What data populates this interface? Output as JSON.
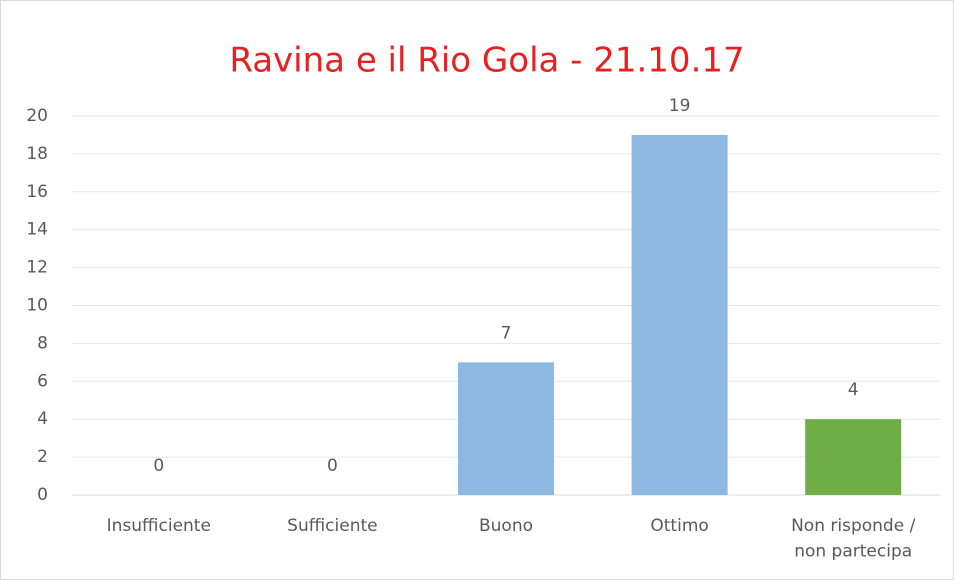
{
  "chart_data": {
    "type": "bar",
    "title": "Ravina e il Rio Gola - 21.10.17",
    "categories": [
      "Insufficiente",
      "Sufficiente",
      "Buono",
      "Ottimo",
      "Non risponde / non partecipa"
    ],
    "values": [
      0,
      0,
      7,
      19,
      4
    ],
    "colors": [
      "#8db8e2",
      "#8db8e2",
      "#8db8e2",
      "#8db8e2",
      "#70ad47"
    ],
    "title_color": "#e8201f",
    "ylim": [
      0,
      20
    ],
    "yticks": [
      0,
      2,
      4,
      6,
      8,
      10,
      12,
      14,
      16,
      18,
      20
    ],
    "grid": true
  }
}
